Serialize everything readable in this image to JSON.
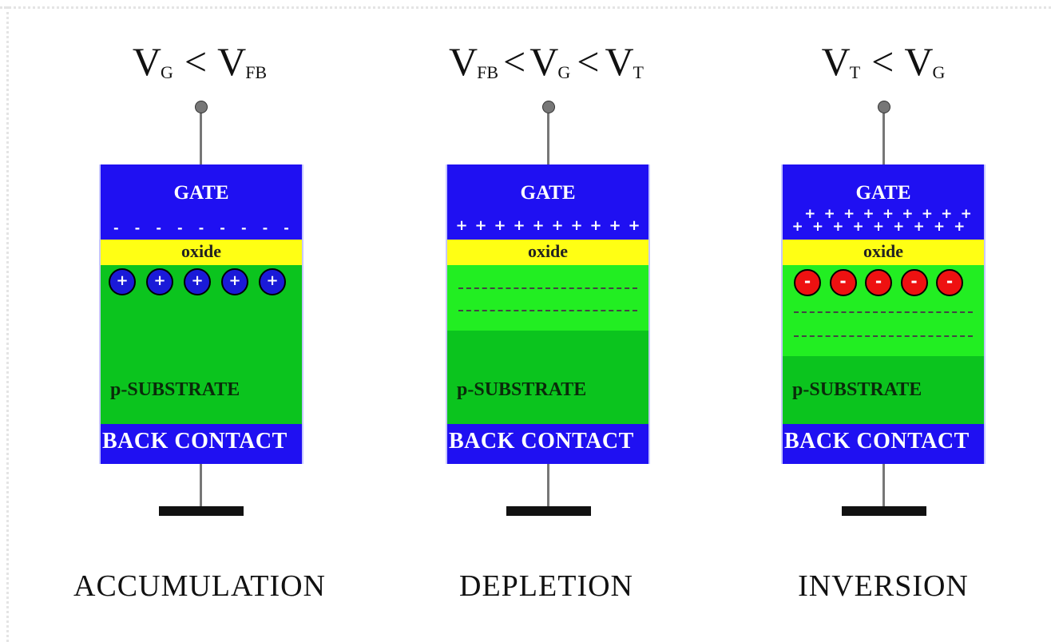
{
  "panels": [
    {
      "id": "accumulation",
      "voltage": {
        "a": "V",
        "a_sub": "G",
        "op1": "<",
        "b": "V",
        "b_sub": "FB",
        "op2": "",
        "c": "",
        "c_sub": ""
      },
      "gate_label": "GATE",
      "gate_charges": "-",
      "oxide_label": "oxide",
      "substrate_label": "p-SUBSTRATE",
      "carrier_type": "hole",
      "carrier_sign": "+",
      "back_label": "BACK CONTACT",
      "mode_label": "ACCUMULATION"
    },
    {
      "id": "depletion",
      "voltage": {
        "a": "V",
        "a_sub": "FB",
        "op1": "<",
        "b": "V",
        "b_sub": "G",
        "op2": "<",
        "c": "V",
        "c_sub": "T"
      },
      "gate_label": "GATE",
      "gate_charges": "+",
      "oxide_label": "oxide",
      "substrate_label": "p-SUBSTRATE",
      "carrier_type": "none",
      "carrier_sign": "",
      "back_label": "BACK CONTACT",
      "mode_label": "DEPLETION"
    },
    {
      "id": "inversion",
      "voltage": {
        "a": "V",
        "a_sub": "T",
        "op1": "<",
        "b": "V",
        "b_sub": "G",
        "op2": "",
        "c": "",
        "c_sub": ""
      },
      "gate_label": "GATE",
      "gate_charges": "+",
      "oxide_label": "oxide",
      "substrate_label": "p-SUBSTRATE",
      "carrier_type": "electron",
      "carrier_sign": "-",
      "back_label": "BACK CONTACT",
      "mode_label": "INVERSION"
    }
  ],
  "colors": {
    "gate": "#1f10f2",
    "oxide": "#ffff14",
    "substrate": "#0bc41e",
    "depletion_region": "#22ee22",
    "hole": "#1a1ad8",
    "electron": "#ee1111"
  }
}
